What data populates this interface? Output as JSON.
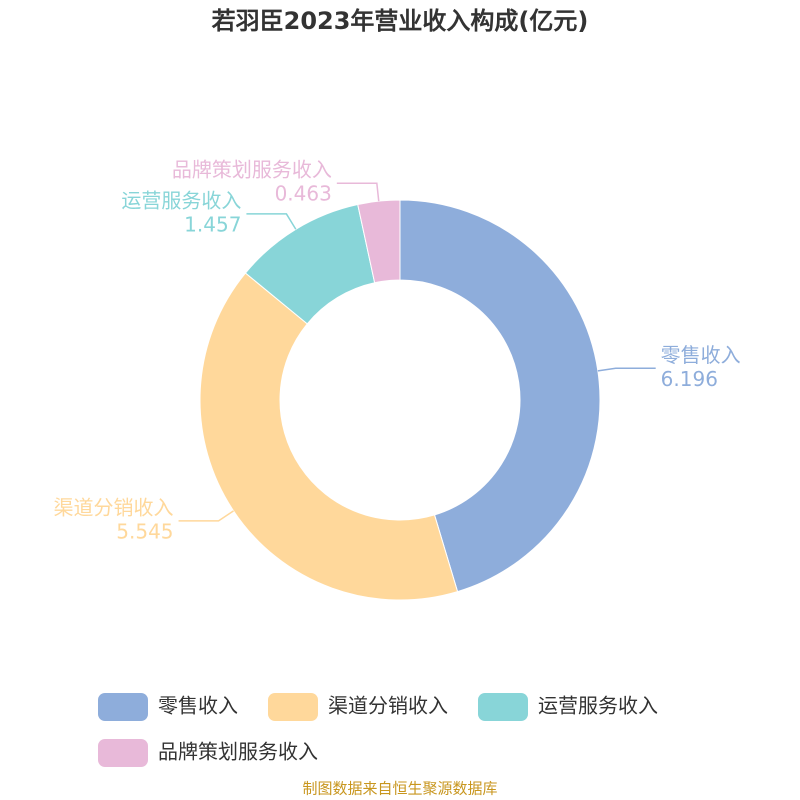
{
  "chart_data": {
    "type": "donut",
    "title": "若羽臣2023年营业收入构成(亿元)",
    "categories": [
      "零售收入",
      "渠道分销收入",
      "运营服务收入",
      "品牌策划服务收入"
    ],
    "values": [
      6.196,
      5.545,
      1.457,
      0.463
    ],
    "colors": [
      "#8eaddb",
      "#ffd89b",
      "#88d5d8",
      "#e8b9d9"
    ],
    "source": "制图数据来自恒生聚源数据库"
  }
}
